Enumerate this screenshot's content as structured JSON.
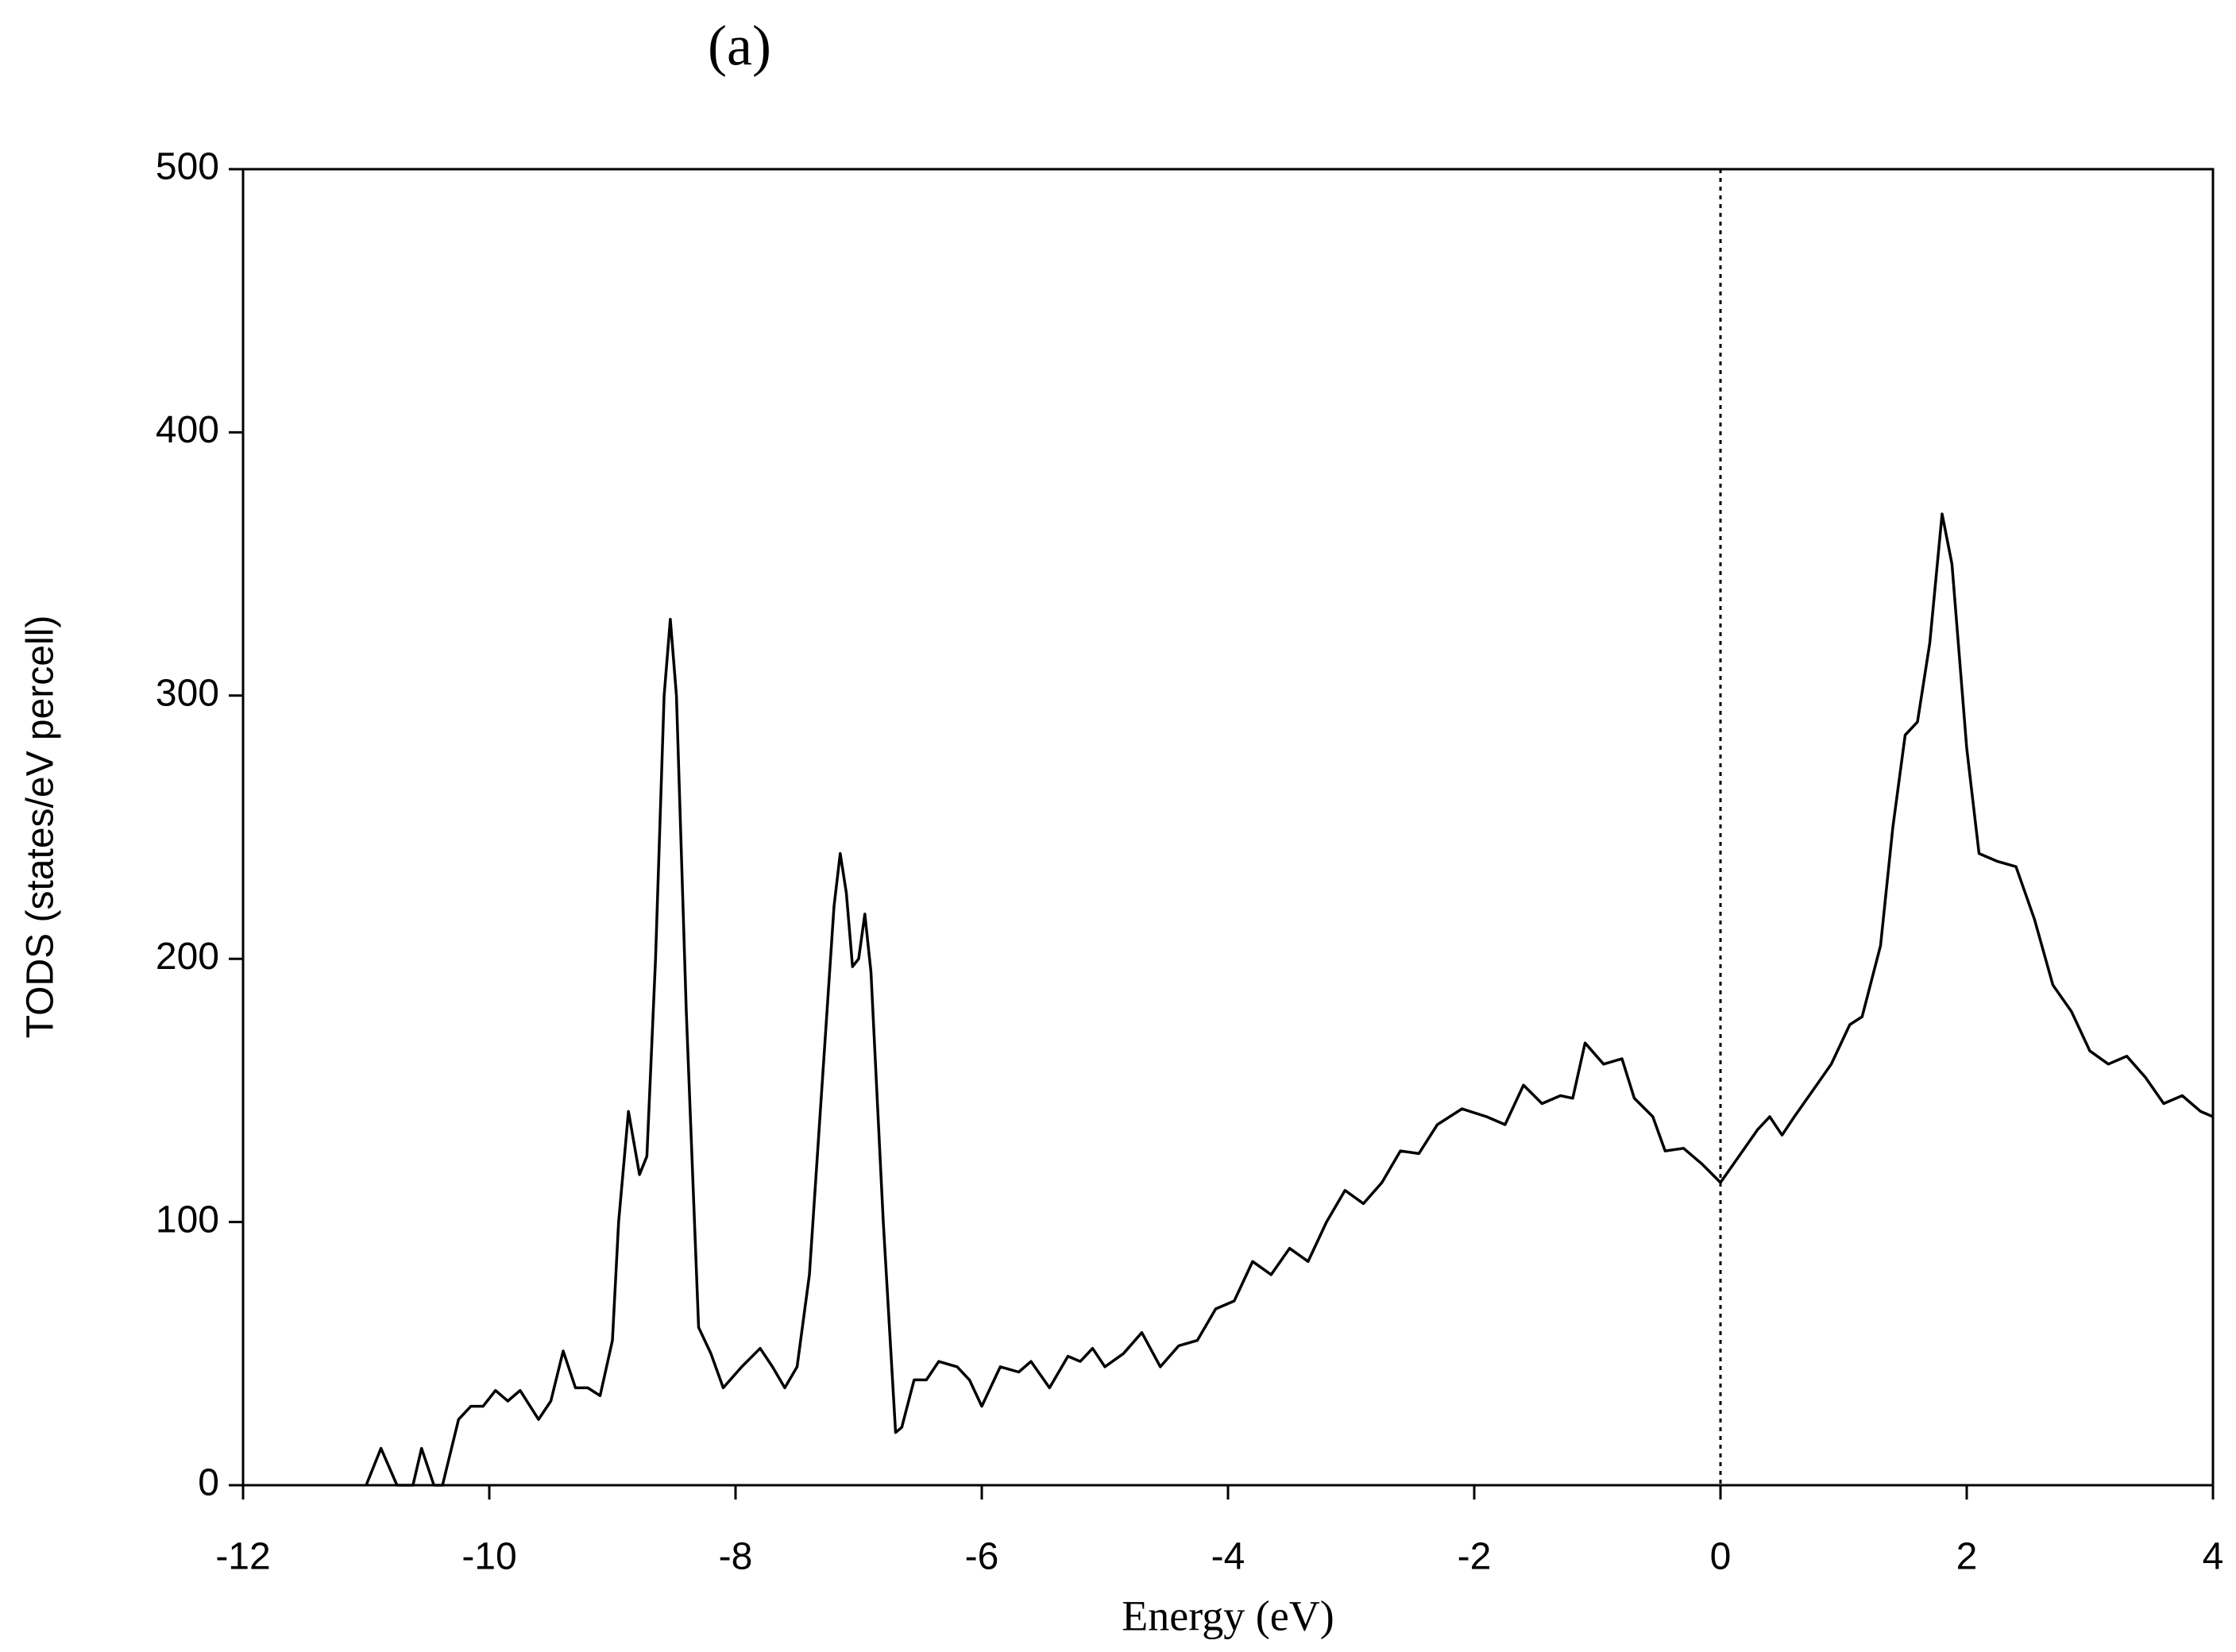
{
  "chart_data": {
    "type": "line",
    "title": "(a)",
    "x_label": "Energy (eV)",
    "y_label": "TODS (states/eV percell)",
    "xlim": [
      -12,
      4
    ],
    "ylim": [
      0,
      500
    ],
    "xticks": [
      -12,
      -10,
      -8,
      -6,
      -4,
      -2,
      0,
      2,
      4
    ],
    "yticks": [
      0,
      100,
      200,
      300,
      400,
      500
    ],
    "vertical_line": 0,
    "series": [
      {
        "color": "#000000",
        "x": [
          -11.0,
          -10.88,
          -10.75,
          -10.62,
          -10.55,
          -10.45,
          -10.38,
          -10.25,
          -10.15,
          -10.05,
          -9.95,
          -9.85,
          -9.75,
          -9.6,
          -9.5,
          -9.4,
          -9.3,
          -9.2,
          -9.1,
          -9.0,
          -8.95,
          -8.87,
          -8.78,
          -8.72,
          -8.65,
          -8.58,
          -8.53,
          -8.48,
          -8.4,
          -8.3,
          -8.2,
          -8.1,
          -7.95,
          -7.8,
          -7.7,
          -7.6,
          -7.5,
          -7.4,
          -7.3,
          -7.2,
          -7.15,
          -7.1,
          -7.05,
          -7.0,
          -6.95,
          -6.9,
          -6.8,
          -6.7,
          -6.65,
          -6.55,
          -6.45,
          -6.35,
          -6.2,
          -6.1,
          -6.0,
          -5.85,
          -5.7,
          -5.6,
          -5.45,
          -5.3,
          -5.2,
          -5.1,
          -5.0,
          -4.85,
          -4.7,
          -4.55,
          -4.4,
          -4.25,
          -4.1,
          -3.95,
          -3.8,
          -3.65,
          -3.5,
          -3.35,
          -3.2,
          -3.05,
          -2.9,
          -2.75,
          -2.6,
          -2.45,
          -2.3,
          -2.1,
          -1.9,
          -1.75,
          -1.6,
          -1.45,
          -1.3,
          -1.2,
          -1.1,
          -0.95,
          -0.8,
          -0.7,
          -0.55,
          -0.45,
          -0.3,
          -0.15,
          0.0,
          0.15,
          0.3,
          0.4,
          0.5,
          0.6,
          0.75,
          0.9,
          1.05,
          1.15,
          1.3,
          1.4,
          1.5,
          1.6,
          1.7,
          1.8,
          1.88,
          2.0,
          2.1,
          2.25,
          2.4,
          2.55,
          2.7,
          2.85,
          3.0,
          3.15,
          3.3,
          3.45,
          3.6,
          3.75,
          3.9,
          4.0
        ],
        "values": [
          0,
          14,
          0,
          0,
          14,
          0,
          0,
          25,
          30,
          30,
          36,
          32,
          36,
          25,
          32,
          51,
          37,
          37,
          34,
          55,
          100,
          142,
          118,
          125,
          200,
          300,
          329,
          300,
          180,
          60,
          50,
          37,
          45,
          52,
          45,
          37,
          45,
          80,
          150,
          220,
          240,
          225,
          197,
          200,
          217,
          195,
          100,
          20,
          22,
          40,
          40,
          47,
          45,
          40,
          30,
          45,
          43,
          47,
          37,
          49,
          47,
          52,
          45,
          50,
          58,
          45,
          53,
          55,
          67,
          70,
          85,
          80,
          90,
          85,
          100,
          112,
          107,
          115,
          127,
          126,
          137,
          143,
          140,
          137,
          152,
          145,
          148,
          147,
          168,
          160,
          162,
          147,
          140,
          127,
          128,
          122,
          115,
          125,
          135,
          140,
          133,
          140,
          150,
          160,
          175,
          178,
          205,
          250,
          285,
          290,
          320,
          369,
          350,
          280,
          240,
          237,
          235,
          215,
          190,
          180,
          165,
          160,
          163,
          155,
          145,
          148,
          142,
          140
        ]
      }
    ]
  }
}
